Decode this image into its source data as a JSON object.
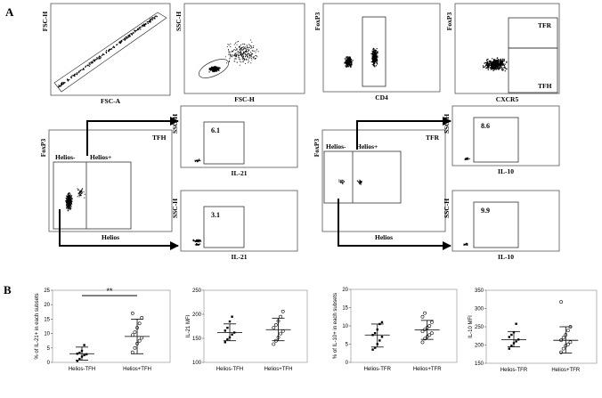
{
  "panel_labels": {
    "a": "A",
    "b": "B"
  },
  "chart_data": [
    {
      "id": "gate-fsc",
      "type": "scatter",
      "xlabel": "FSC-A",
      "ylabel": "FSC-H",
      "gate_values": []
    },
    {
      "id": "gate-ssc",
      "type": "scatter",
      "xlabel": "FSC-H",
      "ylabel": "SSC-H",
      "gate_values": []
    },
    {
      "id": "gate-cd4",
      "type": "scatter",
      "xlabel": "CD4",
      "ylabel": "FoxP3",
      "gate_values": []
    },
    {
      "id": "gate-cxcr5",
      "type": "scatter",
      "xlabel": "CXCR5",
      "ylabel": "FoxP3",
      "gate_labels": [
        "TFR",
        "TFH"
      ]
    },
    {
      "id": "tfh-helios",
      "type": "scatter",
      "title": "TFH",
      "xlabel": "Helios",
      "ylabel": "FoxP3",
      "gate_labels": [
        "Helios-",
        "Helios+"
      ]
    },
    {
      "id": "tfh-il21-top",
      "type": "scatter",
      "xlabel": "IL-21",
      "ylabel": "SSC-H",
      "gate_values": [
        "6.1"
      ]
    },
    {
      "id": "tfh-il21-bottom",
      "type": "scatter",
      "xlabel": "IL-21",
      "ylabel": "SSC-H",
      "gate_values": [
        "3.1"
      ]
    },
    {
      "id": "tfr-helios",
      "type": "scatter",
      "title": "TFR",
      "xlabel": "Helios",
      "ylabel": "FoxP3",
      "gate_labels": [
        "Helios-",
        "Helios+"
      ]
    },
    {
      "id": "tfr-il10-top",
      "type": "scatter",
      "xlabel": "IL-10",
      "ylabel": "SSC-H",
      "gate_values": [
        "8.6"
      ]
    },
    {
      "id": "tfr-il10-bottom",
      "type": "scatter",
      "xlabel": "IL-10",
      "ylabel": "SSC-H",
      "gate_values": [
        "9.9"
      ]
    },
    {
      "id": "b1",
      "type": "scatter",
      "ylabel": "% of IL-21+ in each subsets",
      "categories": [
        "Helios-TFH",
        "Helios+TFH"
      ],
      "ylim": [
        0,
        25
      ],
      "yticks": [
        0,
        5,
        10,
        15,
        20,
        25
      ],
      "significance": "**",
      "groups": [
        {
          "name": "Helios-TFH",
          "marker": "dot",
          "mean": 3.0,
          "sd_low": 0.8,
          "sd_high": 5.3,
          "points": [
            0.5,
            1.2,
            2.0,
            2.5,
            2.8,
            3.0,
            3.3,
            4.0,
            6.0
          ]
        },
        {
          "name": "Helios+TFH",
          "marker": "circle",
          "mean": 9.0,
          "sd_low": 3.0,
          "sd_high": 15.0,
          "points": [
            3.5,
            5.0,
            6.5,
            7.5,
            8.5,
            9.5,
            10.5,
            12.0,
            13.5,
            15.5,
            17.0
          ]
        }
      ]
    },
    {
      "id": "b2",
      "type": "scatter",
      "ylabel": "IL-21 MFI",
      "categories": [
        "Helios-TFH",
        "Helios+TFH"
      ],
      "ylim": [
        100,
        250
      ],
      "yticks": [
        100,
        150,
        200,
        250
      ],
      "groups": [
        {
          "name": "Helios-TFH",
          "marker": "dot",
          "mean": 162,
          "sd_low": 145,
          "sd_high": 180,
          "points": [
            142,
            148,
            152,
            158,
            162,
            166,
            172,
            185,
            195
          ]
        },
        {
          "name": "Helios+TFH",
          "marker": "circle",
          "mean": 168,
          "sd_low": 145,
          "sd_high": 192,
          "points": [
            138,
            145,
            152,
            160,
            165,
            172,
            178,
            186,
            195,
            206
          ]
        }
      ]
    },
    {
      "id": "b3",
      "type": "scatter",
      "ylabel": "% of IL-10+ in each subsets",
      "categories": [
        "Helios-TFR",
        "Helios+TFR"
      ],
      "ylim": [
        0,
        20
      ],
      "yticks": [
        0,
        5,
        10,
        15,
        20
      ],
      "groups": [
        {
          "name": "Helios-TFR",
          "marker": "dot",
          "mean": 7.5,
          "sd_low": 4.2,
          "sd_high": 10.5,
          "points": [
            3.5,
            4.0,
            5.0,
            6.0,
            7.0,
            7.5,
            8.0,
            9.0,
            10.5,
            11.0
          ]
        },
        {
          "name": "Helios+TFR",
          "marker": "circle",
          "mean": 8.9,
          "sd_low": 6.3,
          "sd_high": 11.5,
          "points": [
            5.5,
            6.5,
            7.0,
            7.5,
            8.0,
            8.5,
            9.0,
            9.5,
            10.0,
            11.0,
            12.5,
            13.5
          ]
        }
      ]
    },
    {
      "id": "b4",
      "type": "scatter",
      "ylabel": "IL-10 MFI",
      "categories": [
        "Helios-TFR",
        "Helios+TFR"
      ],
      "ylim": [
        150,
        350
      ],
      "yticks": [
        150,
        200,
        250,
        300,
        350
      ],
      "groups": [
        {
          "name": "Helios-TFR",
          "marker": "dot",
          "mean": 215,
          "sd_low": 195,
          "sd_high": 237,
          "points": [
            190,
            198,
            205,
            210,
            215,
            222,
            228,
            235,
            258
          ]
        },
        {
          "name": "Helios+TFR",
          "marker": "circle",
          "mean": 213,
          "sd_low": 178,
          "sd_high": 250,
          "points": [
            180,
            190,
            198,
            202,
            208,
            213,
            220,
            228,
            240,
            250,
            318
          ]
        }
      ]
    }
  ]
}
